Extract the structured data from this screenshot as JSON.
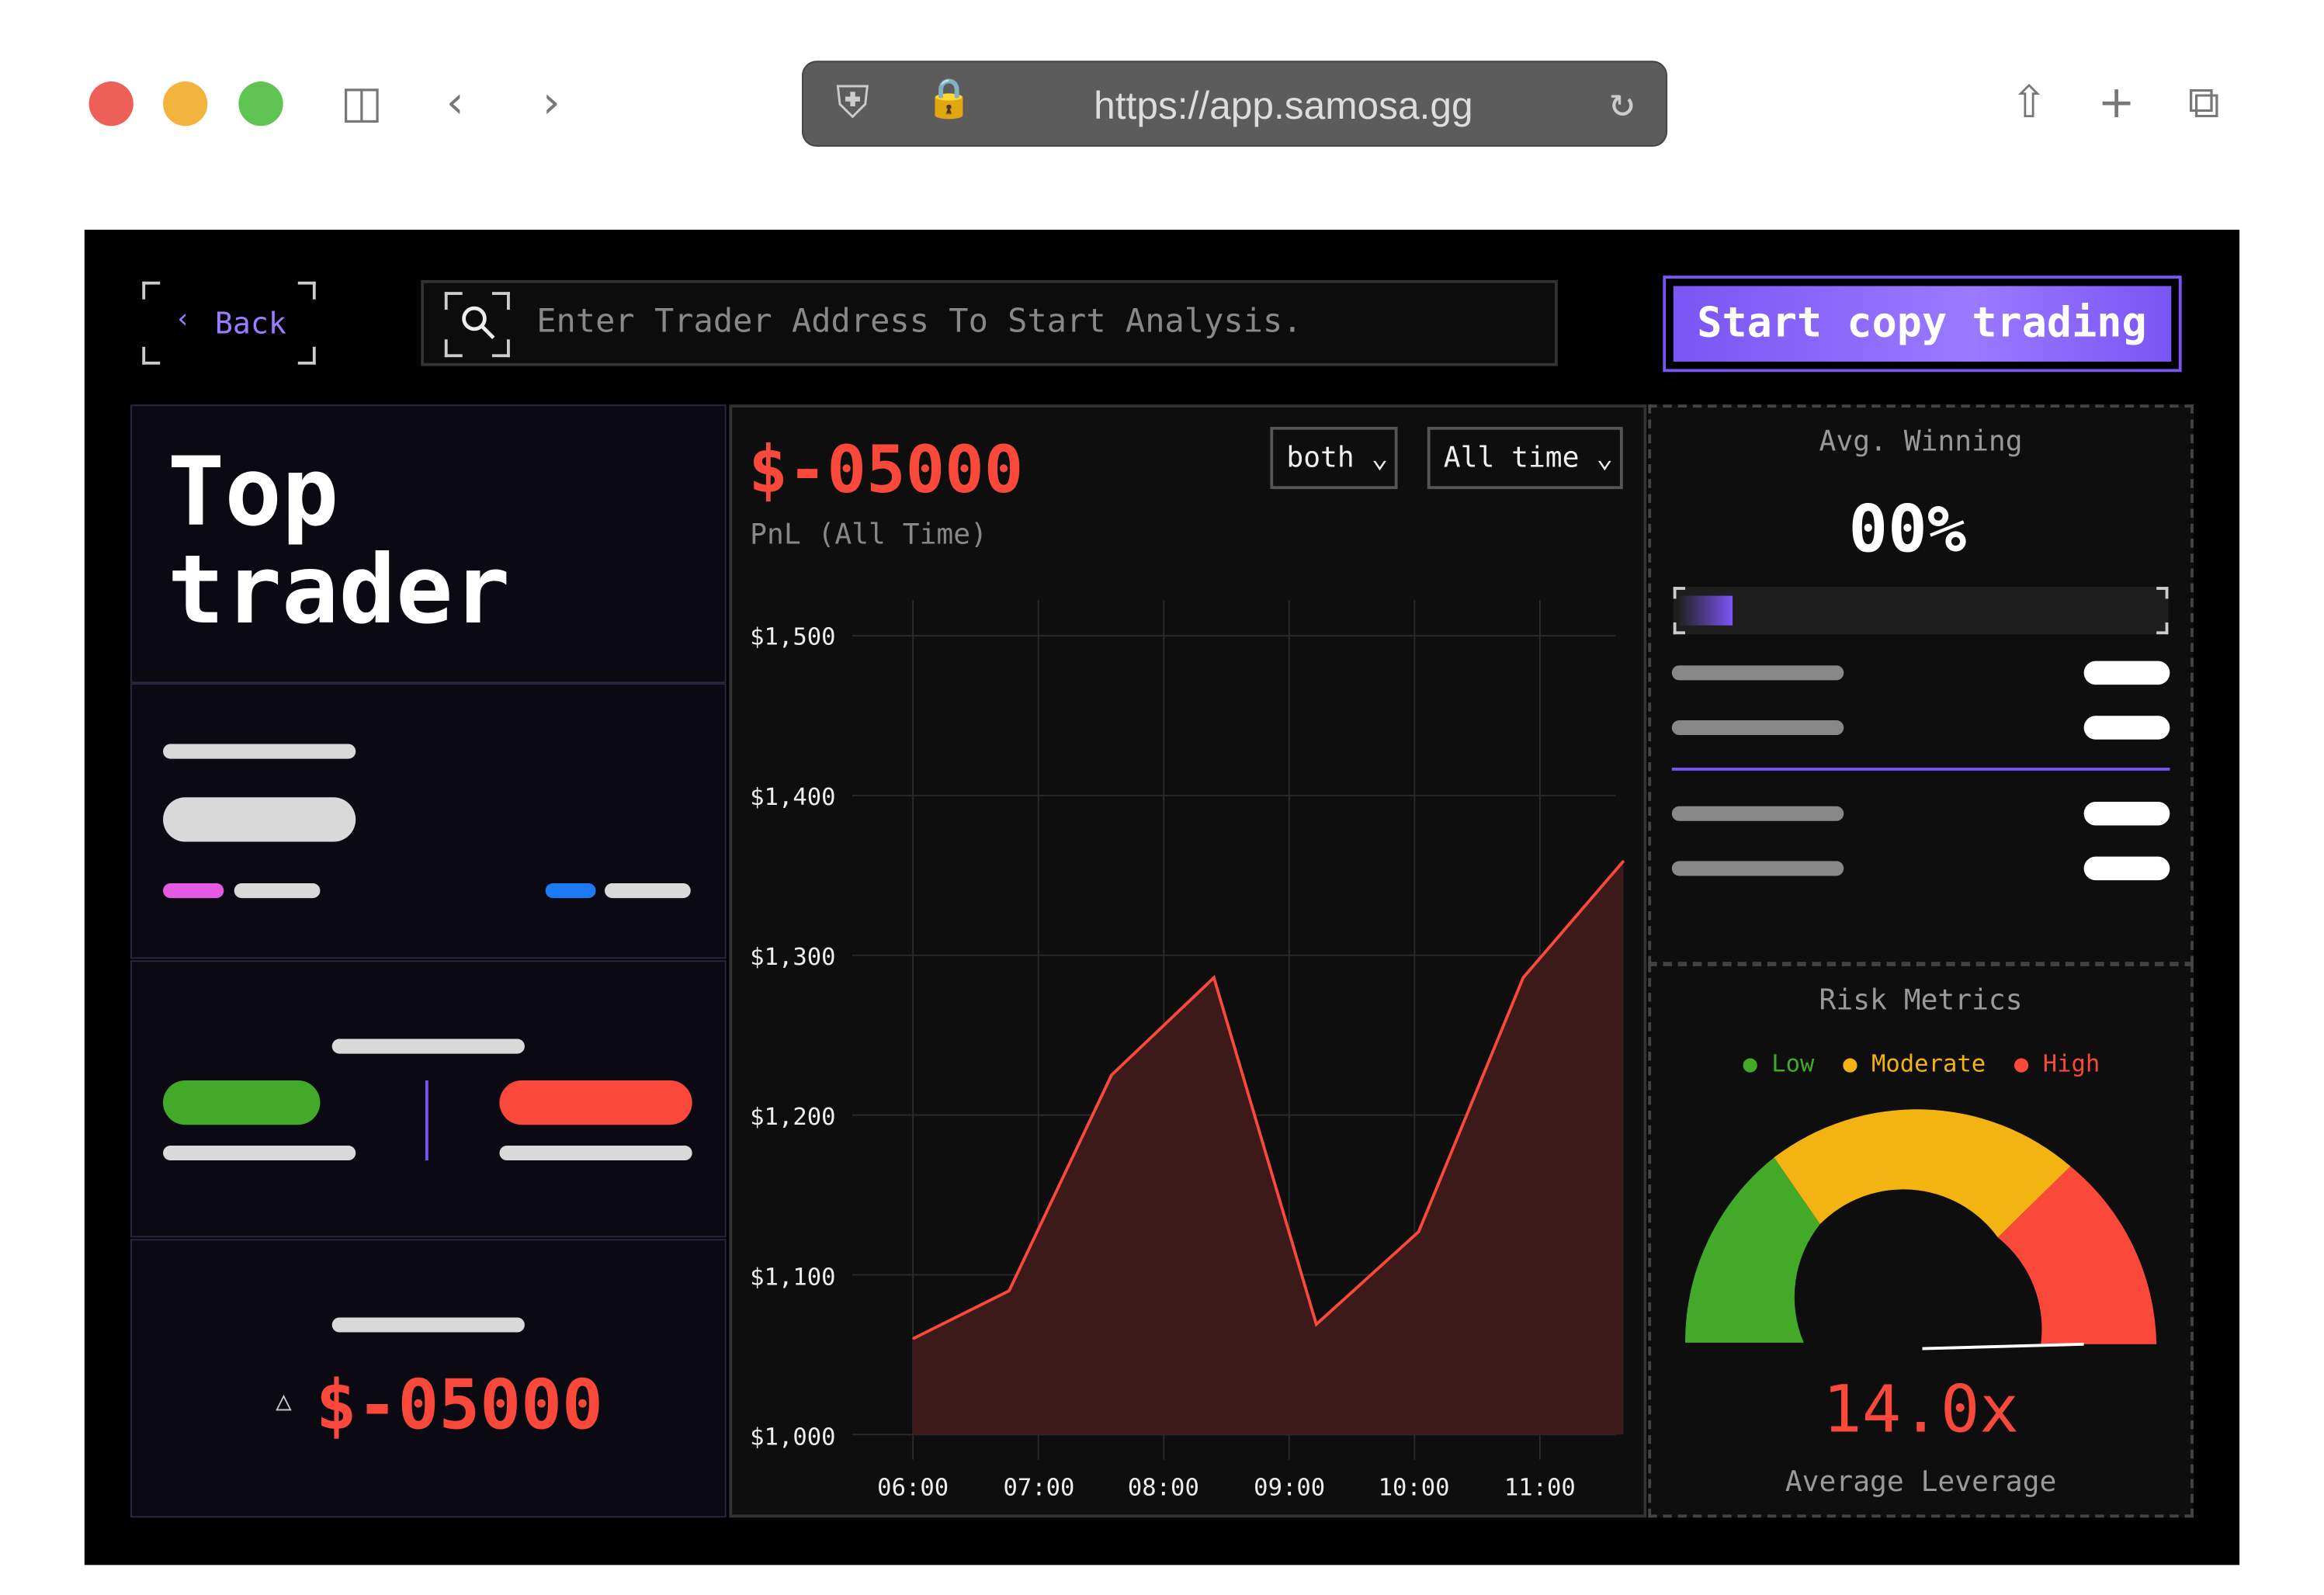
{
  "browser": {
    "url": "https://app.samosa.gg",
    "traffic_lights": [
      "#ed5f57",
      "#f2b43c",
      "#5fc451"
    ]
  },
  "header": {
    "back_label": "Back",
    "search_placeholder": "Enter Trader Address To Start Analysis.",
    "cta_label": "Start copy trading"
  },
  "left": {
    "title_line1": "Top",
    "title_line2": "trader",
    "pnl_value": "$-05000"
  },
  "pnl": {
    "value": "$-05000",
    "label": "PnL (All Time)",
    "filter_side": "both",
    "filter_range": "All time"
  },
  "winning": {
    "title": "Avg. Winning",
    "value": "00%",
    "progress": 0.11
  },
  "risk": {
    "title": "Risk Metrics",
    "legend": [
      {
        "label": "Low",
        "color": "#43a928"
      },
      {
        "label": "Moderate",
        "color": "#f3b310"
      },
      {
        "label": "High",
        "color": "#fa483b"
      }
    ],
    "leverage_value": "14.0x",
    "leverage_label": "Average Leverage"
  },
  "colors": {
    "accent": "#7a55f5",
    "negative": "#fa483b",
    "area_fill": "#3c1a1a"
  },
  "chart_data": {
    "type": "area",
    "x": [
      "06:00",
      "06:46",
      "07:35",
      "08:24",
      "09:13",
      "10:02",
      "10:52",
      "11:40"
    ],
    "values": [
      1060,
      1090,
      1225,
      1286,
      1069,
      1127,
      1286,
      1359
    ],
    "ylim": [
      1000,
      1500
    ],
    "y_ticks": [
      "$1,500",
      "$1,400",
      "$1,300",
      "$1,200",
      "$1,100",
      "$1,000"
    ],
    "x_ticks": [
      "06:00",
      "07:00",
      "08:00",
      "09:00",
      "10:00",
      "11:00"
    ],
    "grid": true
  }
}
